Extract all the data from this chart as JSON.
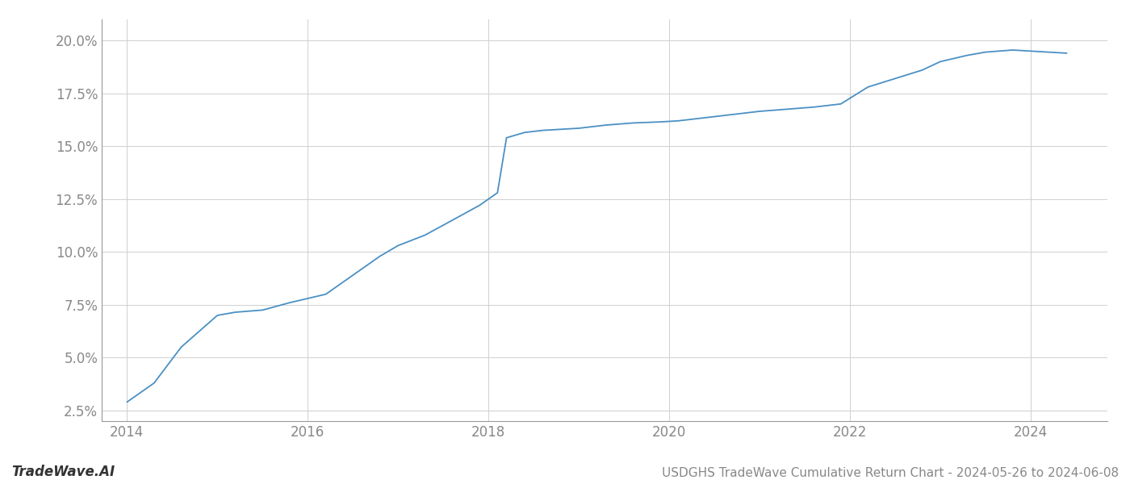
{
  "title": "USDGHS TradeWave Cumulative Return Chart - 2024-05-26 to 2024-06-08",
  "left_label": "TradeWave.AI",
  "line_color": "#4a90c4",
  "background_color": "#ffffff",
  "grid_color": "#d0d0d0",
  "x_years": [
    2014.0,
    2014.3,
    2014.6,
    2015.0,
    2015.2,
    2015.5,
    2015.8,
    2016.0,
    2016.2,
    2016.5,
    2016.8,
    2017.0,
    2017.3,
    2017.6,
    2017.9,
    2018.1,
    2018.2,
    2018.4,
    2018.6,
    2018.8,
    2019.0,
    2019.3,
    2019.6,
    2019.9,
    2020.1,
    2020.4,
    2020.7,
    2021.0,
    2021.3,
    2021.6,
    2021.9,
    2022.2,
    2022.5,
    2022.8,
    2023.0,
    2023.3,
    2023.5,
    2023.8,
    2024.0,
    2024.4
  ],
  "y_values": [
    2.9,
    3.8,
    5.5,
    7.0,
    7.15,
    7.25,
    7.6,
    7.8,
    8.0,
    8.9,
    9.8,
    10.3,
    10.8,
    11.5,
    12.2,
    12.8,
    15.4,
    15.65,
    15.75,
    15.8,
    15.85,
    16.0,
    16.1,
    16.15,
    16.2,
    16.35,
    16.5,
    16.65,
    16.75,
    16.85,
    17.0,
    17.8,
    18.2,
    18.6,
    19.0,
    19.3,
    19.45,
    19.55,
    19.5,
    19.4
  ],
  "xlim": [
    2013.72,
    2024.85
  ],
  "ylim": [
    2.0,
    21.0
  ],
  "yticks": [
    2.5,
    5.0,
    7.5,
    10.0,
    12.5,
    15.0,
    17.5,
    20.0
  ],
  "xticks": [
    2014,
    2016,
    2018,
    2020,
    2022,
    2024
  ],
  "tick_color": "#888888",
  "label_fontsize": 12,
  "title_fontsize": 11,
  "spine_color": "#999999"
}
